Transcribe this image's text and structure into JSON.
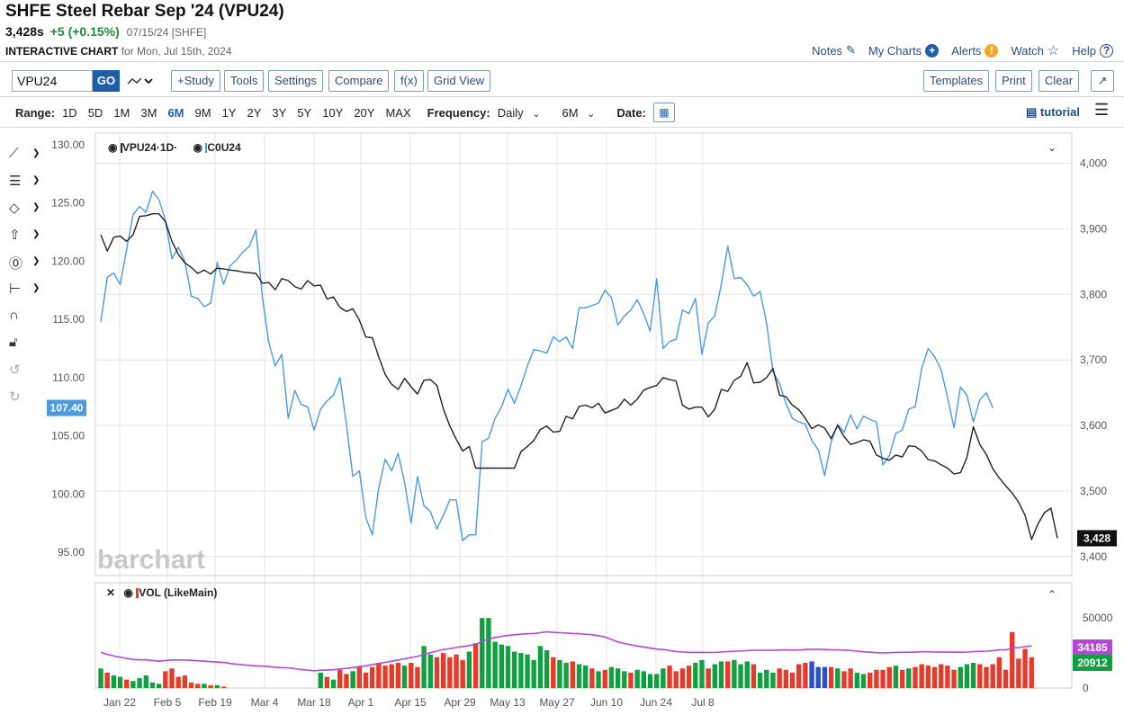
{
  "header": {
    "title": "SHFE Steel Rebar Sep '24 (VPU24)",
    "last": "3,428s",
    "change": "+5 (+0.15%)",
    "meta": "07/15/24 [SHFE]",
    "interactive_label": "INTERACTIVE CHART",
    "for_date": "for Mon, Jul 15th, 2024"
  },
  "toplinks": [
    "Notes",
    "My Charts",
    "Alerts",
    "Watch",
    "Help"
  ],
  "toolbar": {
    "symbol_value": "VPU24",
    "go": "GO",
    "buttons": [
      "+Study",
      "Tools",
      "Settings",
      "Compare",
      "f(x)",
      "Grid View"
    ],
    "right_buttons": [
      "Templates",
      "Print",
      "Clear"
    ]
  },
  "rangebar": {
    "label": "Range:",
    "ranges": [
      "1D",
      "5D",
      "1M",
      "3M",
      "6M",
      "9M",
      "1Y",
      "2Y",
      "3Y",
      "5Y",
      "10Y",
      "20Y",
      "MAX"
    ],
    "active": "6M",
    "frequency_label": "Frequency:",
    "frequency_value": "Daily",
    "period_value": "6M",
    "date_label": "Date:",
    "tutorial": "tutorial"
  },
  "colors": {
    "primary_line": "#222222",
    "compare_line": "#4a9ae0",
    "volume_up": "#10a040",
    "volume_down": "#e53b2a",
    "volume_neutral": "#2b4fc7",
    "volume_ma": "#b347d6",
    "accent": "#1f5fa8"
  },
  "chart_data": {
    "type": "line",
    "legend": [
      "VPU24·1D·",
      "C0U24"
    ],
    "watermark": "barchart",
    "x_labels": [
      "Jan 22",
      "Feb 5",
      "Feb 19",
      "Mar 4",
      "Mar 18",
      "Apr 1",
      "Apr 15",
      "Apr 29",
      "May 13",
      "May 27",
      "Jun 10",
      "Jun 24",
      "Jul 8"
    ],
    "left_axis": {
      "ticks": [
        "130.00",
        "125.00",
        "120.00",
        "115.00",
        "110.00",
        "105.00",
        "100.00",
        "95.00"
      ],
      "ylim": [
        93,
        131
      ],
      "current": "107.40"
    },
    "right_axis": {
      "ticks": [
        "4,000",
        "3,900",
        "3,800",
        "3,700",
        "3,600",
        "3,500",
        "3,400"
      ],
      "ylim": [
        3371,
        4046
      ],
      "current": "3,428"
    },
    "series": [
      {
        "name": "VPU24",
        "axis": "right",
        "values": [
          3891,
          3866,
          3887,
          3889,
          3881,
          3891,
          3919,
          3920,
          3923,
          3923,
          3911,
          3881,
          3861,
          3848,
          3841,
          3832,
          3837,
          3831,
          3840,
          3839,
          3837,
          3836,
          3834,
          3833,
          3832,
          3817,
          3818,
          3807,
          3824,
          3821,
          3812,
          3808,
          3821,
          3813,
          3814,
          3793,
          3796,
          3780,
          3774,
          3778,
          3761,
          3735,
          3734,
          3705,
          3678,
          3663,
          3655,
          3672,
          3659,
          3648,
          3669,
          3670,
          3661,
          3625,
          3599,
          3579,
          3561,
          3568,
          3535,
          3535,
          3535,
          3535,
          3535,
          3535,
          3535,
          3560,
          3568,
          3577,
          3594,
          3599,
          3590,
          3591,
          3614,
          3610,
          3629,
          3631,
          3627,
          3634,
          3619,
          3623,
          3627,
          3640,
          3631,
          3640,
          3654,
          3658,
          3661,
          3673,
          3670,
          3668,
          3631,
          3625,
          3628,
          3628,
          3613,
          3625,
          3655,
          3652,
          3669,
          3675,
          3696,
          3665,
          3666,
          3673,
          3687,
          3646,
          3644,
          3631,
          3624,
          3611,
          3595,
          3601,
          3596,
          3580,
          3600,
          3583,
          3571,
          3574,
          3578,
          3576,
          3555,
          3550,
          3547,
          3555,
          3552,
          3569,
          3568,
          3561,
          3548,
          3546,
          3540,
          3535,
          3526,
          3528,
          3551,
          3598,
          3571,
          3556,
          3534,
          3520,
          3508,
          3497,
          3483,
          3463,
          3426,
          3450,
          3467,
          3474,
          3428
        ]
      },
      {
        "name": "C0U24",
        "axis": "left",
        "values": [
          114.8,
          118.6,
          119.0,
          118.0,
          121.0,
          124.0,
          124.7,
          124.2,
          126.0,
          125.3,
          123.5,
          120.2,
          121.2,
          120.0,
          117.0,
          116.8,
          116.1,
          116.4,
          119.9,
          118.0,
          119.6,
          120.1,
          120.8,
          121.3,
          122.7,
          116.9,
          113.0,
          111.0,
          112.0,
          106.5,
          108.9,
          107.7,
          107.5,
          105.5,
          107.3,
          108.0,
          108.5,
          110.0,
          106.0,
          101.5,
          102.0,
          98.0,
          96.5,
          100.5,
          103.0,
          102.0,
          103.5,
          101.0,
          97.5,
          101.5,
          99.0,
          98.5,
          97.0,
          98.2,
          99.5,
          99.5,
          96.0,
          96.5,
          96.5,
          104.5,
          104.8,
          106.5,
          107.5,
          109.0,
          107.8,
          109.3,
          111.0,
          112.4,
          112.3,
          112.1,
          113.5,
          113.1,
          113.5,
          112.5,
          116.0,
          116.0,
          116.2,
          116.4,
          117.5,
          116.9,
          114.5,
          115.3,
          115.8,
          116.7,
          115.5,
          114.0,
          118.5,
          112.5,
          113.1,
          113.3,
          115.8,
          115.5,
          116.8,
          112.0,
          114.7,
          115.3,
          118.0,
          121.3,
          118.5,
          118.6,
          118.0,
          117.0,
          117.4,
          114.7,
          110.5,
          109.5,
          107.8,
          106.5,
          106.2,
          106.0,
          104.6,
          103.8,
          101.6,
          104.5,
          106.0,
          105.3,
          106.8,
          105.6,
          106.7,
          106.4,
          106.2,
          102.5,
          103.3,
          105.2,
          105.5,
          107.3,
          107.5,
          110.8,
          112.5,
          111.8,
          110.7,
          108.3,
          105.7,
          109.2,
          108.5,
          106.2,
          108.1,
          108.7,
          107.4
        ]
      },
      {
        "name": "VOL (LikeMain)",
        "axis": "volume",
        "values": [
          14000,
          11000,
          9000,
          8000,
          6000,
          5000,
          7000,
          9000,
          4000,
          3000,
          12000,
          14000,
          8000,
          9000,
          4000,
          3000,
          3000,
          2000,
          2000,
          1000,
          0,
          0,
          0,
          0,
          0,
          0,
          0,
          0,
          0,
          0,
          0,
          0,
          0,
          0,
          11000,
          8000,
          6000,
          13000,
          10000,
          12000,
          15000,
          11000,
          15000,
          18000,
          16000,
          17000,
          18000,
          16000,
          18000,
          15000,
          30000,
          24000,
          22000,
          25000,
          22000,
          24000,
          20000,
          26000,
          32000,
          50000,
          50000,
          33000,
          31000,
          30000,
          26000,
          25000,
          24000,
          20000,
          30000,
          27000,
          22000,
          20000,
          18000,
          19000,
          17000,
          16000,
          14000,
          12000,
          13000,
          15000,
          14000,
          12000,
          11000,
          13000,
          12000,
          10000,
          10000,
          14000,
          16000,
          12000,
          14000,
          16000,
          18000,
          20000,
          14000,
          17000,
          19000,
          19000,
          20000,
          17000,
          19000,
          17000,
          11000,
          13000,
          11000,
          14000,
          13000,
          11000,
          17000,
          18000,
          19000,
          15000,
          15000,
          15000,
          14000,
          12000,
          14000,
          11000,
          10000,
          11000,
          13000,
          13000,
          15000,
          16000,
          13000,
          14000,
          15000,
          17000,
          16000,
          15000,
          17000,
          16000,
          13000,
          15000,
          17000,
          18000,
          17000,
          15000,
          17000,
          22000,
          13000,
          40000,
          21000,
          28000,
          22000
        ]
      }
    ],
    "volume_axis": {
      "ticks": [
        "50000",
        "0"
      ],
      "ylim": [
        0,
        70000
      ]
    },
    "volume_badges": [
      "34185",
      "20912"
    ],
    "volume_legend": "VOL (LikeMain)"
  }
}
